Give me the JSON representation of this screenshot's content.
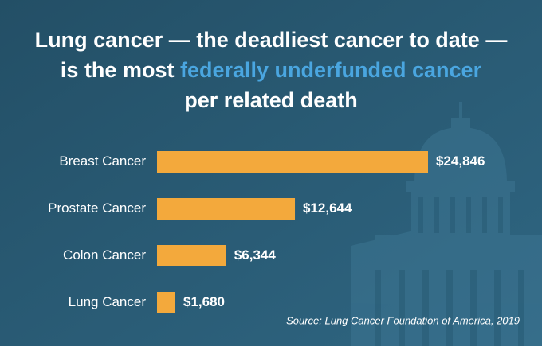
{
  "chart_data": {
    "type": "bar",
    "orientation": "horizontal",
    "title": [
      {
        "text": "Lung cancer — the deadliest cancer to date —",
        "color": "#ffffff"
      },
      {
        "text": "is the most",
        "color": "#ffffff"
      },
      {
        "text": "federally underfunded cancer",
        "color": "#4aa6e0"
      },
      {
        "text": "per related death",
        "color": "#ffffff"
      }
    ],
    "categories": [
      "Breast Cancer",
      "Prostate Cancer",
      "Colon Cancer",
      "Lung Cancer"
    ],
    "values": [
      24846,
      12644,
      6344,
      1680
    ],
    "value_labels": [
      "$24,846",
      "$12,644",
      "$6,344",
      "$1,680"
    ],
    "color": "#f3a93c",
    "source": "Source: Lung Cancer Foundation of America, 2019"
  }
}
